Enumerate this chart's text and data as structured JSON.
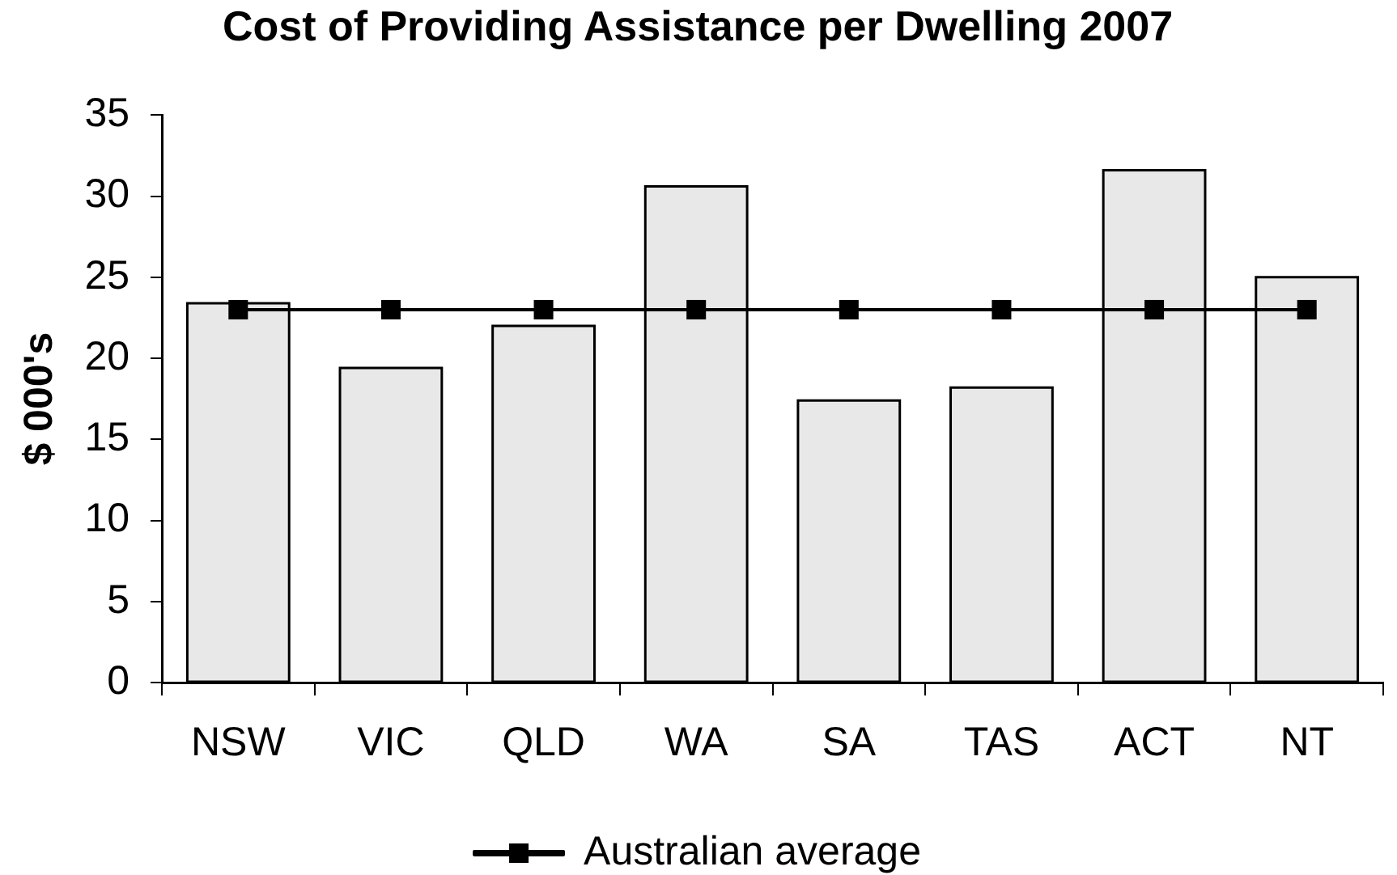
{
  "chart_data": {
    "type": "bar",
    "title": "Cost of Providing Assistance per Dwelling 2007",
    "ylabel": "$ 000's",
    "categories": [
      "NSW",
      "VIC",
      "QLD",
      "WA",
      "SA",
      "TAS",
      "ACT",
      "NT"
    ],
    "series": [
      {
        "color": "#e8e8e8",
        "values": [
          23.4,
          19.4,
          22.0,
          30.6,
          17.4,
          18.2,
          31.6,
          25.0
        ]
      },
      {
        "type": "line",
        "name": "Australian average",
        "color": "#000000",
        "values": [
          23.0,
          23.0,
          23.0,
          23.0,
          23.0,
          23.0,
          23.0,
          23.0
        ]
      }
    ],
    "ylim": [
      0,
      35
    ],
    "yticks": [
      0,
      5,
      10,
      15,
      20,
      25,
      30,
      35
    ],
    "legend": "bottom",
    "marker": "square",
    "line_style": "solid"
  }
}
